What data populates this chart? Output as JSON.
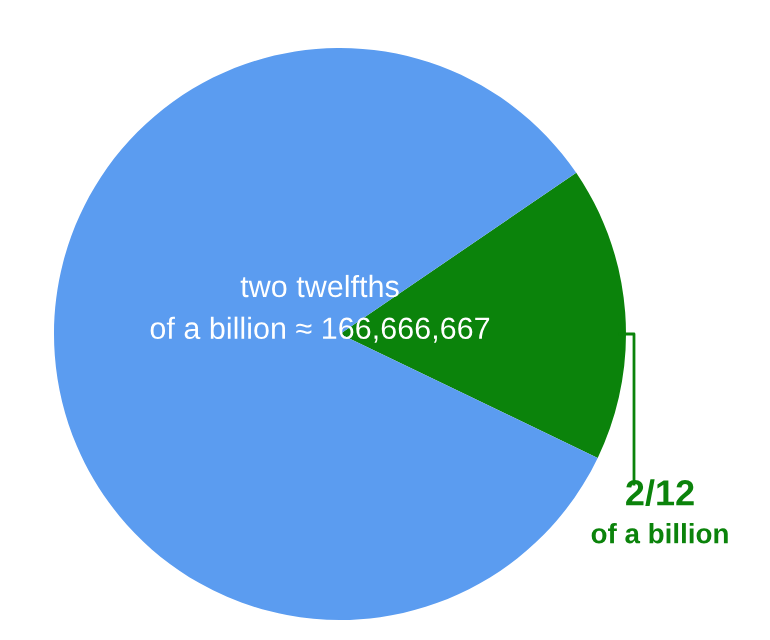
{
  "chart_data": {
    "type": "pie",
    "categories": [
      "2/12\nof a billion",
      null
    ],
    "values": [
      16.67,
      83.33
    ],
    "colors": [
      "#0b830b",
      "#5b9cf0"
    ],
    "annotations": [
      "two twelfths\nof a billion ≈ 166,666,667"
    ]
  }
}
